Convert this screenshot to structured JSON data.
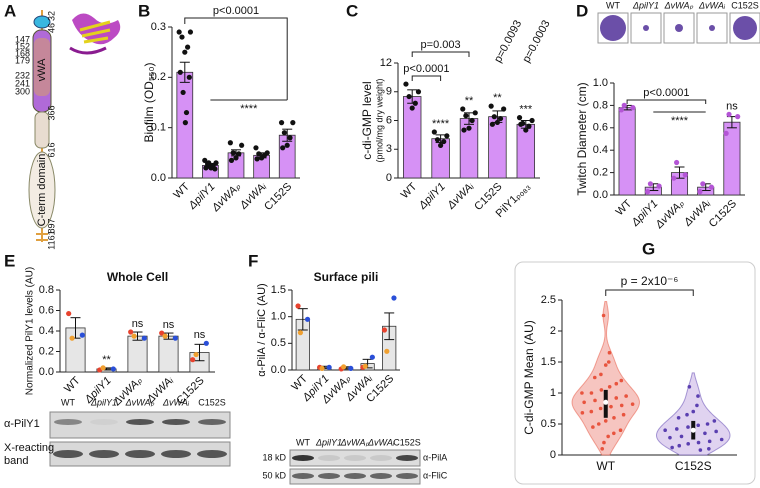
{
  "panel_letters": [
    "A",
    "B",
    "C",
    "D",
    "E",
    "F",
    "G"
  ],
  "protein_diagram": {
    "residues_left": [
      "147",
      "152",
      "168",
      "179",
      "232",
      "241",
      "300"
    ],
    "residues_right": [
      "32",
      "46",
      "366",
      "616",
      "897",
      "1161"
    ],
    "domains": [
      "vWA",
      "C-term domain"
    ]
  },
  "chart_data": [
    {
      "type": "bar",
      "ylabel": "Biofilm (OD₅₅₀)",
      "categories": [
        "WT",
        "ΔpilY1",
        "ΔvWAₚ",
        "ΔvWAᵢ",
        "C152S"
      ],
      "values": [
        0.21,
        0.025,
        0.05,
        0.045,
        0.085
      ],
      "errors": [
        0.02,
        0.003,
        0.006,
        0.005,
        0.012
      ],
      "points": [
        [
          0.29,
          0.29,
          0.28,
          0.26,
          0.25,
          0.21,
          0.2,
          0.17,
          0.13,
          0.11
        ],
        [
          0.035,
          0.03,
          0.028,
          0.025,
          0.022,
          0.02,
          0.018,
          0.03,
          0.025,
          0.02
        ],
        [
          0.07,
          0.065,
          0.05,
          0.048,
          0.04,
          0.035
        ],
        [
          0.06,
          0.05,
          0.048,
          0.045,
          0.04,
          0.038
        ],
        [
          0.11,
          0.11,
          0.09,
          0.08,
          0.065,
          0.06
        ]
      ],
      "color": "#d691f5",
      "point_color": "#111",
      "ylim": [
        0,
        0.3
      ],
      "yticks": [
        {
          "value": 0,
          "label": "0.0"
        },
        0.1,
        0.2,
        0.3
      ],
      "annotations": [
        "p<0.0001",
        "****"
      ]
    },
    {
      "type": "bar",
      "ylabel": [
        "c-di-GMP level",
        "(pmol/mg dry weight)"
      ],
      "categories": [
        "WT",
        "ΔpilY1",
        "ΔvWAᵢ",
        "C152S",
        "PilY1ₚₒ₈₃"
      ],
      "values": [
        8.5,
        4.1,
        6.2,
        6.4,
        5.6
      ],
      "errors": [
        0.7,
        0.4,
        0.6,
        0.6,
        0.4
      ],
      "points": [
        [
          9.8,
          9.0,
          8.5,
          7.8,
          7.3
        ],
        [
          4.8,
          4.4,
          4.0,
          3.8,
          3.4
        ],
        [
          7.2,
          6.8,
          6.5,
          6.0,
          5.2,
          5.0
        ],
        [
          7.5,
          7.2,
          6.4,
          6.2,
          5.8,
          5.6
        ],
        [
          6.3,
          6.0,
          5.7,
          5.4,
          5.0,
          5.6
        ]
      ],
      "color": "#d691f5",
      "point_color": "#111",
      "ylim": [
        0,
        12
      ],
      "yticks": [
        0,
        3,
        6,
        9,
        12
      ],
      "annotations": [
        "p<0.0001",
        "p=0.003",
        "p=0.0093",
        "p=0.0003",
        "****",
        "**",
        "**",
        "***"
      ]
    },
    {
      "type": "bar",
      "ylabel": "Twitch Diameter (cm)",
      "categories": [
        "WT",
        "ΔpilY1",
        "ΔvWAₚ",
        "ΔvWAᵢ",
        "C152S"
      ],
      "values": [
        0.78,
        0.07,
        0.2,
        0.07,
        0.65
      ],
      "errors": [
        0.02,
        0.03,
        0.05,
        0.03,
        0.05
      ],
      "points": [
        [
          0.76,
          0.78,
          0.8
        ],
        [
          0.03,
          0.08,
          0.1
        ],
        [
          0.15,
          0.18,
          0.29
        ],
        [
          0.03,
          0.07,
          0.1
        ],
        [
          0.55,
          0.7,
          0.72
        ]
      ],
      "color": "#d691f5",
      "point_color": "#b455d6",
      "ylim": [
        0,
        1
      ],
      "yticks": [
        {
          "value": 0,
          "label": "0.0"
        },
        0.2,
        0.4,
        0.6,
        0.8,
        {
          "value": 1,
          "label": "1.0"
        }
      ],
      "annotations": [
        "p<0.0001",
        "****",
        "ns"
      ]
    },
    {
      "type": "bar",
      "title": "Whole Cell",
      "ylabel": "Normalized PilY1 levels (AU)",
      "categories": [
        "WT",
        "ΔpilY1",
        "ΔvWAₚ",
        "ΔvWAᵢ",
        "C152S"
      ],
      "values": [
        0.43,
        0.03,
        0.35,
        0.35,
        0.19
      ],
      "errors": [
        0.1,
        0.01,
        0.04,
        0.03,
        0.08
      ],
      "points": [
        [
          0.57,
          0.36,
          0.33
        ],
        [
          0.02,
          0.03,
          0.04
        ],
        [
          0.39,
          0.33,
          0.35
        ],
        [
          0.38,
          0.33,
          0.35
        ],
        [
          0.12,
          0.28,
          0.17
        ]
      ],
      "color": "#e6e6e6",
      "point_colors": [
        "#e8432e",
        "#2a4fd8",
        "#f0a030"
      ],
      "ylim": [
        0,
        0.8
      ],
      "yticks": [
        {
          "value": 0,
          "label": "0.0"
        },
        0.2,
        0.4,
        0.6,
        0.8
      ],
      "annotations": [
        "**",
        "ns",
        "ns",
        "ns"
      ]
    },
    {
      "type": "bar",
      "title": "Surface pili",
      "ylabel": "α-PilA / α-FliC (AU)",
      "categories": [
        "WT",
        "ΔpilY1",
        "ΔvWAₚ",
        "ΔvWAᵢ",
        "C152S"
      ],
      "values": [
        0.95,
        0.05,
        0.04,
        0.12,
        0.82
      ],
      "errors": [
        0.2,
        0.02,
        0.02,
        0.08,
        0.25
      ],
      "points": [
        [
          1.2,
          0.95,
          0.7
        ],
        [
          0.05,
          0.05,
          0.03
        ],
        [
          0.02,
          0.03,
          0.06
        ],
        [
          0.05,
          0.24,
          0.07
        ],
        [
          0.75,
          1.35,
          0.35
        ]
      ],
      "color": "#e6e6e6",
      "point_colors": [
        "#e8432e",
        "#2a4fd8",
        "#f0a030"
      ],
      "ylim": [
        0,
        1.5
      ],
      "yticks": [
        {
          "value": 0,
          "label": "0.0"
        },
        0.5,
        {
          "value": 1,
          "label": "1.0"
        },
        1.5
      ]
    },
    {
      "type": "violin",
      "ylabel": "C-di-GMP Mean (AU)",
      "categories": [
        "WT",
        "C152S"
      ],
      "series": [
        {
          "name": "WT",
          "color": "#f4b6b0",
          "point_color": "#e8543e",
          "points": [
            2.25,
            1.65,
            1.5,
            1.45,
            1.3,
            1.25,
            1.2,
            1.15,
            1.1,
            1.05,
            1.0,
            1.0,
            0.95,
            0.92,
            0.9,
            0.88,
            0.85,
            0.82,
            0.8,
            0.78,
            0.75,
            0.7,
            0.68,
            0.65,
            0.6,
            0.55,
            0.5,
            0.45,
            0.4,
            0.35,
            0.3,
            0.2,
            0.1
          ],
          "median": 0.85,
          "q1": 0.6,
          "q3": 1.05
        },
        {
          "name": "C152S",
          "color": "#d8c8ec",
          "point_color": "#5a3fb0",
          "points": [
            1.1,
            0.95,
            0.8,
            0.7,
            0.65,
            0.6,
            0.55,
            0.5,
            0.48,
            0.45,
            0.42,
            0.4,
            0.38,
            0.35,
            0.33,
            0.3,
            0.28,
            0.25,
            0.22,
            0.2,
            0.18,
            0.15,
            0.12,
            0.1,
            0.08
          ],
          "median": 0.4,
          "q1": 0.25,
          "q3": 0.55
        }
      ],
      "ylim": [
        0,
        2.5
      ],
      "yticks": [
        0,
        0.5,
        1,
        1.5,
        2,
        2.5
      ],
      "annotations": [
        "p = 2x10⁻⁶"
      ]
    }
  ],
  "blots": {
    "E": {
      "rows": [
        "α-PilY1",
        [
          "X-reacting",
          "band"
        ]
      ]
    },
    "F": {
      "markers": [
        "18 kD",
        "50 kD"
      ],
      "rows": [
        "α-PilA",
        "α-FliC"
      ]
    }
  }
}
